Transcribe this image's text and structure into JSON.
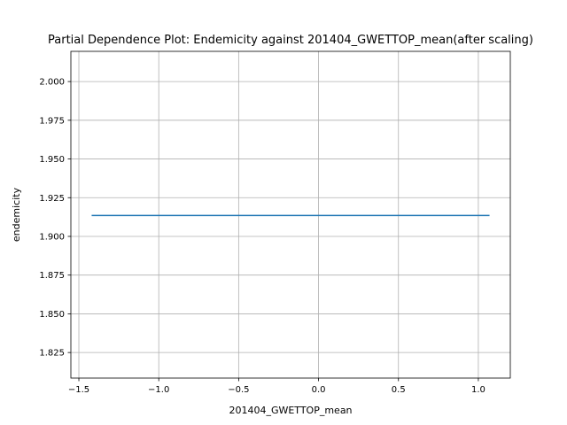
{
  "chart_data": {
    "type": "line",
    "title": "Partial Dependence Plot: Endemicity against 201404_GWETTOP_mean(after scaling)",
    "xlabel": "201404_GWETTOP_mean",
    "ylabel": "endemicity",
    "xlim": [
      -1.55,
      1.2
    ],
    "ylim": [
      1.8085,
      2.0195
    ],
    "x_ticks": [
      -1.5,
      -1.0,
      -0.5,
      0.0,
      0.5,
      1.0
    ],
    "x_tick_labels": [
      "−1.5",
      "−1.0",
      "−0.5",
      "0.0",
      "0.5",
      "1.0"
    ],
    "y_ticks": [
      1.825,
      1.85,
      1.875,
      1.9,
      1.925,
      1.95,
      1.975,
      2.0
    ],
    "y_tick_labels": [
      "1.825",
      "1.850",
      "1.875",
      "1.900",
      "1.925",
      "1.950",
      "1.975",
      "2.000"
    ],
    "grid": true,
    "series": [
      {
        "color": "#1f77b4",
        "x": [
          -1.42,
          1.07
        ],
        "y": [
          1.9135,
          1.9135
        ]
      }
    ]
  }
}
